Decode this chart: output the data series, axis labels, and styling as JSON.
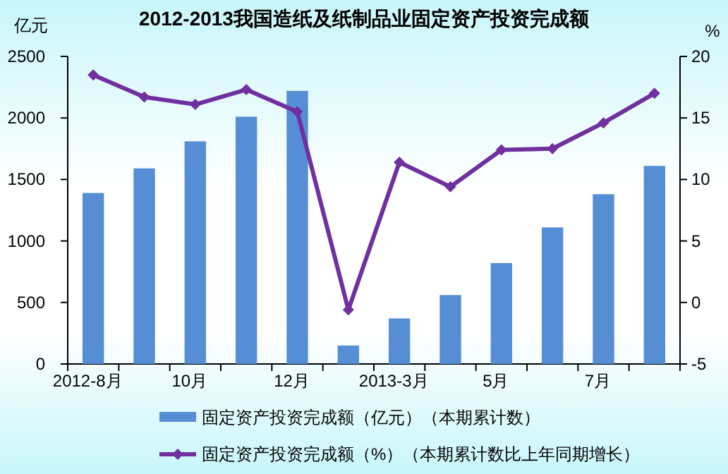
{
  "chart_data": {
    "type": "bar",
    "title": "2012-2013我国造纸及纸制品业固定资产投资完成额",
    "ylabel": "亿元",
    "y2label": "%",
    "categories": [
      "2012-8月",
      null,
      "10月",
      null,
      "12月",
      null,
      "2013-3月",
      null,
      "5月",
      null,
      "7月",
      null
    ],
    "series": [
      {
        "name": "固定资产投资完成额（亿元）（本期累计数）",
        "color": "#558ed5",
        "values": [
          1390,
          1590,
          1810,
          2010,
          2220,
          150,
          370,
          560,
          820,
          1110,
          1380,
          1610
        ]
      },
      {
        "name": "固定资产投资完成额（%）（本期累计数比上年同期增长）",
        "type": "line",
        "axis": "y2",
        "color": "#7030a0",
        "marker": "diamond",
        "values": [
          18.5,
          16.7,
          16.1,
          17.3,
          15.5,
          -0.6,
          11.4,
          9.4,
          12.4,
          12.5,
          14.6,
          17.0
        ]
      }
    ],
    "ylim": [
      0,
      2500
    ],
    "yticks": [
      0,
      500,
      1000,
      1500,
      2000,
      2500
    ],
    "y2lim": [
      -5,
      20
    ],
    "y2ticks": [
      -5,
      0,
      5,
      10,
      15,
      20
    ],
    "legend": "bottom"
  }
}
